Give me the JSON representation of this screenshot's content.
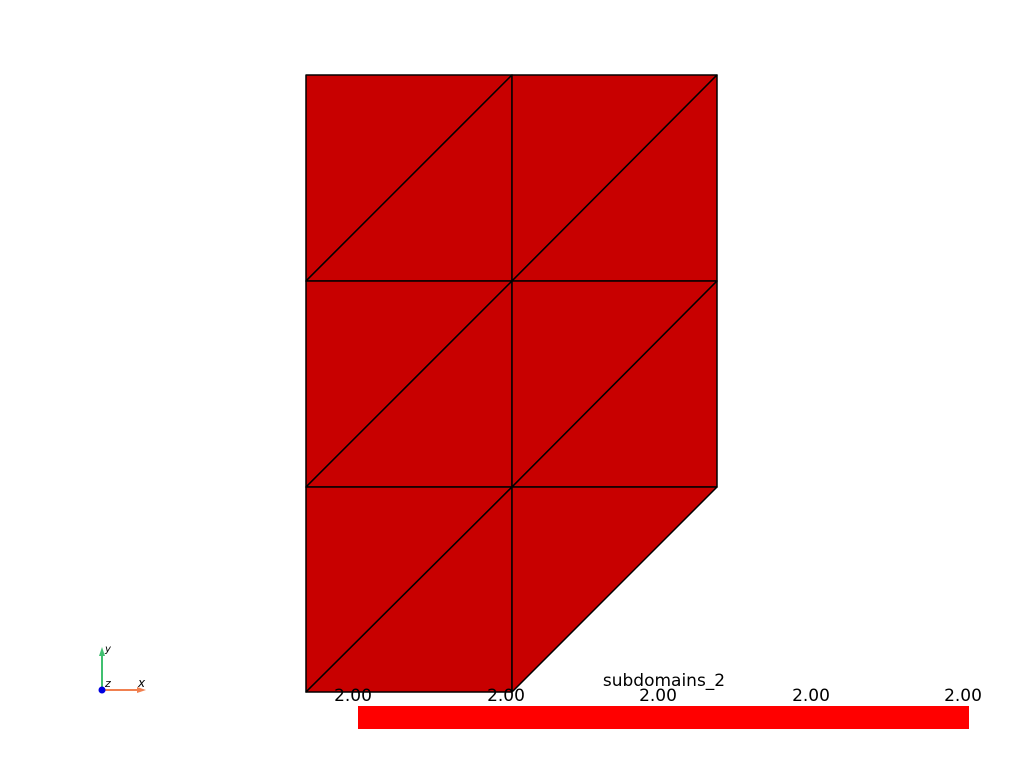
{
  "scalar_bar": {
    "title": "subdomains_2",
    "tick_labels": [
      "2.00",
      "2.00",
      "2.00",
      "2.00",
      "2.00"
    ],
    "range": [
      2.0,
      2.0
    ],
    "color": "#ff0000"
  },
  "mesh": {
    "face_color": "#c80000",
    "edge_color": "#000000",
    "cells": 12,
    "cell_shape": "triangle"
  },
  "orientation_axes": {
    "x_label": "x",
    "y_label": "y",
    "z_label": "z",
    "x_color": "#f08050",
    "y_color": "#40c070",
    "z_color": "#0000e0"
  },
  "background": "#ffffff"
}
